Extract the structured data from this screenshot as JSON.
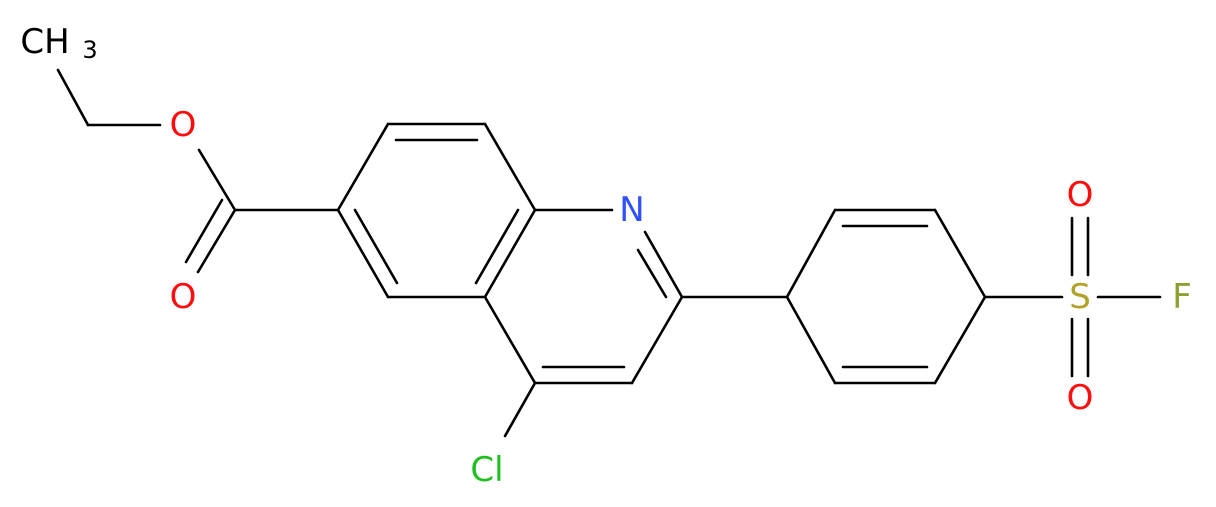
{
  "atoms": [
    {
      "label": "CH",
      "subscript": "3"
    },
    {
      "label": "O"
    },
    {
      "label": "O"
    },
    {
      "label": "N"
    },
    {
      "label": "Cl"
    },
    {
      "label": "S"
    },
    {
      "label": "O"
    },
    {
      "label": "O"
    },
    {
      "label": "F"
    }
  ]
}
